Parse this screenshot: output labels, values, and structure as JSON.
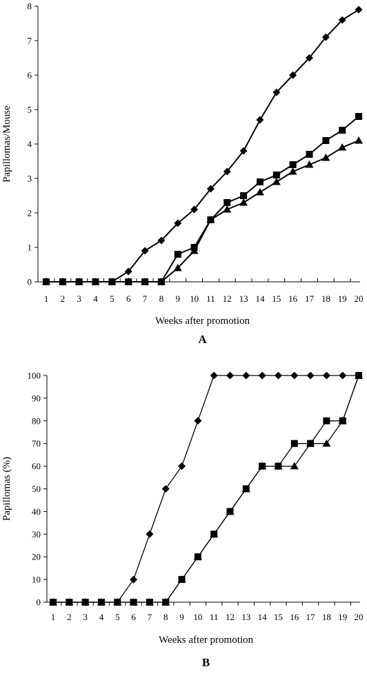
{
  "chart_data": [
    {
      "type": "line",
      "panel_label": "A",
      "xlabel": "Weeks after promotion",
      "ylabel": "Papillomas/Mouse",
      "xlim": [
        1,
        20
      ],
      "ylim": [
        0,
        8
      ],
      "x_ticks": [
        "1",
        "2",
        "3",
        "4",
        "5",
        "6",
        "7",
        "8",
        "9",
        "10",
        "11",
        "12",
        "13",
        "14",
        "15",
        "16",
        "17",
        "18",
        "19",
        "20"
      ],
      "y_ticks": [
        "0",
        "1",
        "2",
        "3",
        "4",
        "5",
        "6",
        "7",
        "8"
      ],
      "x": [
        1,
        2,
        3,
        4,
        5,
        6,
        7,
        8,
        9,
        10,
        11,
        12,
        13,
        14,
        15,
        16,
        17,
        18,
        19,
        20
      ],
      "grid": false,
      "series": [
        {
          "marker": "diamond",
          "values": [
            0,
            0,
            0,
            0,
            0,
            0.3,
            0.9,
            1.2,
            1.7,
            2.1,
            2.7,
            3.2,
            3.8,
            4.7,
            5.5,
            6.0,
            6.5,
            7.1,
            7.6,
            7.9
          ]
        },
        {
          "marker": "square",
          "values": [
            0,
            0,
            0,
            0,
            0,
            0,
            0,
            0,
            0.8,
            1.0,
            1.8,
            2.3,
            2.5,
            2.9,
            3.1,
            3.4,
            3.7,
            4.1,
            4.4,
            4.8
          ]
        },
        {
          "marker": "triangle",
          "values": [
            0,
            0,
            0,
            0,
            0,
            0,
            0,
            0,
            0.4,
            0.9,
            1.8,
            2.1,
            2.3,
            2.6,
            2.9,
            3.2,
            3.4,
            3.6,
            3.9,
            4.1
          ]
        }
      ]
    },
    {
      "type": "line",
      "panel_label": "B",
      "xlabel": "Weeks after promotion",
      "ylabel": "Papillomas (%)",
      "xlim": [
        1,
        20
      ],
      "ylim": [
        0,
        100
      ],
      "x_ticks": [
        "1",
        "2",
        "3",
        "4",
        "5",
        "6",
        "7",
        "8",
        "9",
        "10",
        "11",
        "12",
        "13",
        "14",
        "15",
        "16",
        "17",
        "18",
        "19",
        "20"
      ],
      "y_ticks": [
        "0",
        "10",
        "20",
        "30",
        "40",
        "50",
        "60",
        "70",
        "80",
        "90",
        "100"
      ],
      "x": [
        1,
        2,
        3,
        4,
        5,
        6,
        7,
        8,
        9,
        10,
        11,
        12,
        13,
        14,
        15,
        16,
        17,
        18,
        19,
        20
      ],
      "grid": false,
      "series": [
        {
          "marker": "diamond",
          "values": [
            0,
            0,
            0,
            0,
            0,
            10,
            30,
            50,
            60,
            80,
            100,
            100,
            100,
            100,
            100,
            100,
            100,
            100,
            100,
            100
          ]
        },
        {
          "marker": "triangle",
          "values": [
            0,
            0,
            0,
            0,
            0,
            0,
            0,
            0,
            10,
            20,
            30,
            40,
            50,
            60,
            60,
            60,
            70,
            70,
            80,
            100
          ]
        },
        {
          "marker": "square",
          "values": [
            0,
            0,
            0,
            0,
            0,
            0,
            0,
            0,
            10,
            20,
            30,
            40,
            50,
            60,
            60,
            70,
            70,
            80,
            80,
            100
          ]
        }
      ]
    }
  ]
}
